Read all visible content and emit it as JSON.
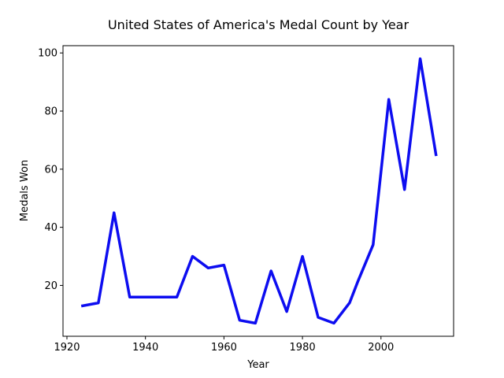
{
  "chart_data": {
    "type": "line",
    "title": "United States of America's Medal Count by Year",
    "xlabel": "Year",
    "ylabel": "Medals Won",
    "xlim": [
      1919,
      2018.5
    ],
    "ylim": [
      2.5,
      102.5
    ],
    "xticks": [
      1920,
      1940,
      1960,
      1980,
      2000
    ],
    "yticks": [
      20,
      40,
      60,
      80,
      100
    ],
    "grid": false,
    "series": [
      {
        "color": "#0d0df0",
        "x": [
          1924,
          1928,
          1932,
          1936,
          1948,
          1952,
          1956,
          1960,
          1964,
          1968,
          1972,
          1976,
          1980,
          1984,
          1988,
          1992,
          1994,
          1998,
          2002,
          2006,
          2010,
          2014
        ],
        "y": [
          13,
          14,
          45,
          16,
          16,
          30,
          26,
          27,
          8,
          7,
          25,
          11,
          30,
          9,
          7,
          14,
          21,
          34,
          84,
          53,
          98,
          65
        ]
      }
    ]
  }
}
